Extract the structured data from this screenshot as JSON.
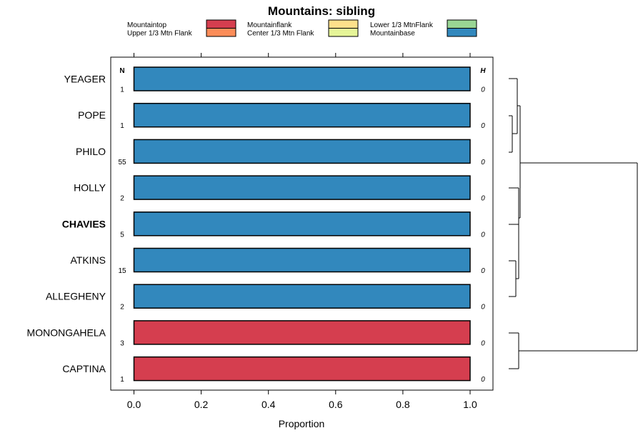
{
  "chart_data": {
    "type": "bar",
    "title": "Mountains: sibling",
    "xlabel": "Proportion",
    "xlim": [
      -0.07,
      1.07
    ],
    "x_ticks": [
      "0.0",
      "0.2",
      "0.4",
      "0.6",
      "0.8",
      "1.0"
    ],
    "x_tick_values": [
      0.0,
      0.2,
      0.4,
      0.6,
      0.8,
      1.0
    ],
    "legend_position": "top",
    "legend": [
      {
        "name": "Mountaintop",
        "color": "#d53e4f"
      },
      {
        "name": "Upper 1/3 Mtn Flank",
        "color": "#fc8d59"
      },
      {
        "name": "Mountainflank",
        "color": "#fee08b"
      },
      {
        "name": "Center 1/3 Mtn Flank",
        "color": "#e6f598"
      },
      {
        "name": "Lower 1/3 MtnFlank",
        "color": "#99d594"
      },
      {
        "name": "Mountainbase",
        "color": "#3288bd"
      }
    ],
    "n_header": "N",
    "h_header": "H",
    "highlight_category": "CHAVIES",
    "categories": [
      "YEAGER",
      "POPE",
      "PHILO",
      "HOLLY",
      "CHAVIES",
      "ATKINS",
      "ALLEGHENY",
      "MONONGAHELA",
      "CAPTINA"
    ],
    "n_values": [
      "1",
      "1",
      "55",
      "2",
      "5",
      "15",
      "2",
      "3",
      "1"
    ],
    "h_values": [
      "0",
      "0",
      "0",
      "0",
      "0",
      "0",
      "0",
      "0",
      "0"
    ],
    "series": [
      {
        "name": "Mountaintop",
        "color": "#d53e4f",
        "values": [
          0,
          0,
          0,
          0,
          0,
          0,
          0,
          1.0,
          1.0
        ]
      },
      {
        "name": "Upper 1/3 Mtn Flank",
        "color": "#fc8d59",
        "values": [
          0,
          0,
          0,
          0,
          0,
          0,
          0,
          0,
          0
        ]
      },
      {
        "name": "Mountainflank",
        "color": "#fee08b",
        "values": [
          0,
          0,
          0,
          0,
          0,
          0,
          0,
          0,
          0
        ]
      },
      {
        "name": "Center 1/3 Mtn Flank",
        "color": "#e6f598",
        "values": [
          0,
          0,
          0,
          0,
          0,
          0,
          0,
          0,
          0
        ]
      },
      {
        "name": "Lower 1/3 MtnFlank",
        "color": "#99d594",
        "values": [
          0,
          0,
          0,
          0,
          0,
          0,
          0,
          0,
          0
        ]
      },
      {
        "name": "Mountainbase",
        "color": "#3288bd",
        "values": [
          1.0,
          1.0,
          1.0,
          1.0,
          1.0,
          1.0,
          1.0,
          0,
          0
        ]
      }
    ],
    "dendrogram": "right-side clustering tree of categories"
  }
}
